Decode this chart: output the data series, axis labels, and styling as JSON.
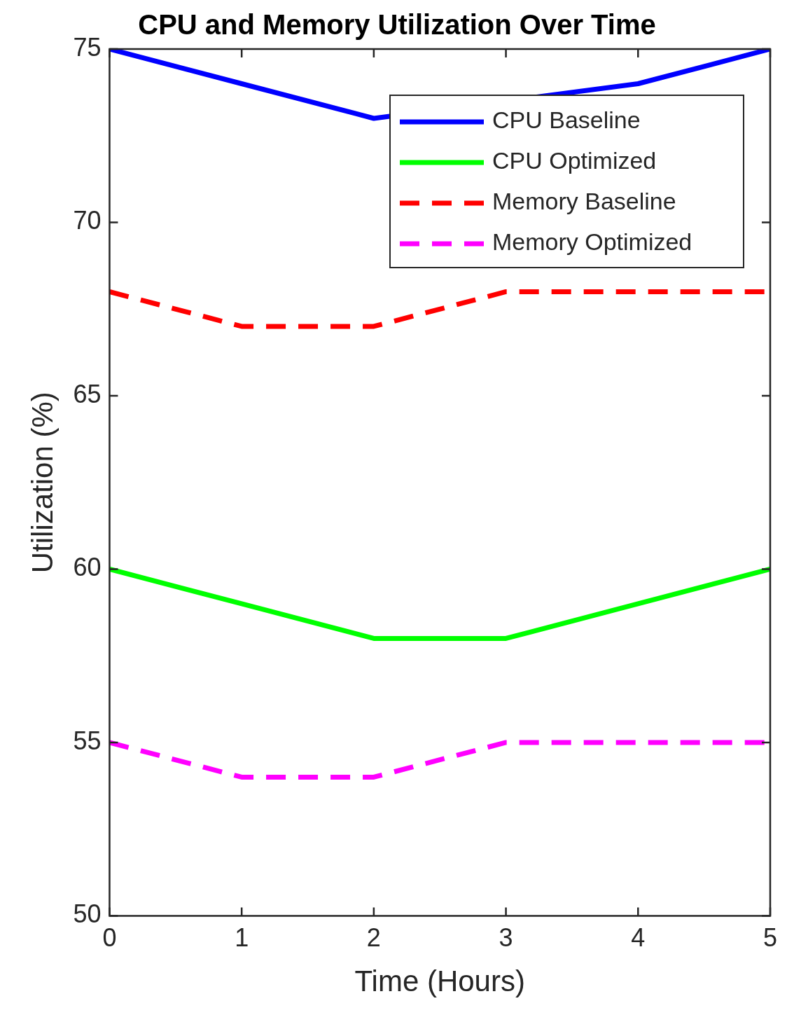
{
  "chart_data": {
    "type": "line",
    "title": "CPU and Memory Utilization Over Time",
    "xlabel": "Time (Hours)",
    "ylabel": "Utilization (%)",
    "x": [
      0,
      1,
      2,
      3,
      4,
      5
    ],
    "series": [
      {
        "name": "CPU Baseline",
        "color": "#0000ff",
        "line_style": "solid",
        "values": [
          75,
          74,
          73,
          null,
          74,
          75
        ]
      },
      {
        "name": "CPU Optimized",
        "color": "#00ff00",
        "line_style": "solid",
        "values": [
          60,
          59,
          58,
          58,
          59,
          60
        ]
      },
      {
        "name": "Memory Baseline",
        "color": "#ff0000",
        "line_style": "dashed",
        "values": [
          68,
          67,
          67,
          68,
          68,
          68
        ]
      },
      {
        "name": "Memory Optimized",
        "color": "#ff00ff",
        "line_style": "dashed",
        "values": [
          55,
          54,
          54,
          55,
          55,
          55
        ]
      }
    ],
    "xlim": [
      0,
      5
    ],
    "xticks": [
      0,
      1,
      2,
      3,
      4,
      5
    ],
    "ylim": [
      50,
      75
    ],
    "yticks": [
      50,
      55,
      60,
      65,
      70,
      75
    ],
    "grid": false,
    "legend": "top right",
    "marker": "none"
  }
}
